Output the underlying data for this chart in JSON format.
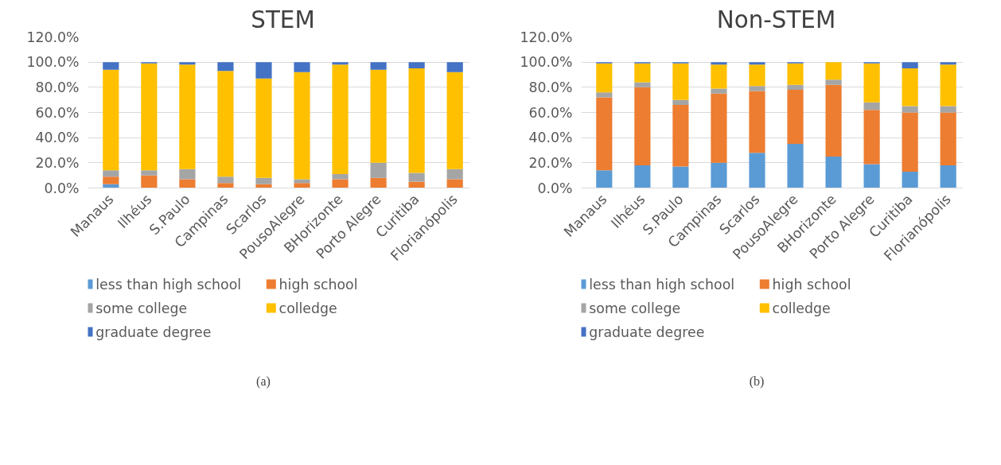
{
  "chart_data": [
    {
      "type": "bar",
      "stacked": true,
      "title": "STEM",
      "categories": [
        "Manaus",
        "Ilhéus",
        "S.Paulo",
        "Campinas",
        "Scarlos",
        "PousoAlegre",
        "BHorizonte",
        "Porto Alegre",
        "Curitiba",
        "Florianópolis"
      ],
      "series": [
        {
          "name": "less than high school",
          "color": "#5b9bd5",
          "values": [
            0.03,
            0,
            0,
            0,
            0,
            0,
            0,
            0,
            0,
            0
          ]
        },
        {
          "name": "high school",
          "color": "#ed7d31",
          "values": [
            0.06,
            0.1,
            0.07,
            0.04,
            0.03,
            0.04,
            0.07,
            0.08,
            0.05,
            0.07
          ]
        },
        {
          "name": "some college",
          "color": "#a5a5a5",
          "values": [
            0.05,
            0.04,
            0.08,
            0.05,
            0.05,
            0.03,
            0.04,
            0.12,
            0.07,
            0.08
          ]
        },
        {
          "name": "colledge",
          "color": "#ffc000",
          "values": [
            0.8,
            0.85,
            0.83,
            0.84,
            0.79,
            0.85,
            0.87,
            0.74,
            0.83,
            0.77
          ]
        },
        {
          "name": "graduate degree",
          "color": "#4472c4",
          "values": [
            0.06,
            0.01,
            0.02,
            0.07,
            0.13,
            0.08,
            0.02,
            0.06,
            0.05,
            0.08
          ]
        }
      ],
      "ylim": [
        0,
        1.2
      ],
      "yticks": [
        {
          "value": 0,
          "label": "0.0%"
        },
        {
          "value": 0.2,
          "label": "20.0%"
        },
        {
          "value": 0.4,
          "label": "40.0%"
        },
        {
          "value": 0.6,
          "label": "60.0%"
        },
        {
          "value": 0.8,
          "label": "80.0%"
        },
        {
          "value": 1,
          "label": "100.0%"
        },
        {
          "value": 1.2,
          "label": "120.0%"
        }
      ],
      "grid": "y",
      "legend": "bottom",
      "annotations": [
        "(a)"
      ]
    },
    {
      "type": "bar",
      "stacked": true,
      "title": "Non-STEM",
      "categories": [
        "Manaus",
        "Ilhéus",
        "S.Paulo",
        "Campinas",
        "Scarlos",
        "PousoAlegre",
        "BHorizonte",
        "Porto Alegre",
        "Curitiba",
        "Florianópolis"
      ],
      "series": [
        {
          "name": "less than high school",
          "color": "#5b9bd5",
          "values": [
            0.14,
            0.18,
            0.17,
            0.2,
            0.28,
            0.35,
            0.25,
            0.19,
            0.13,
            0.18
          ]
        },
        {
          "name": "high school",
          "color": "#ed7d31",
          "values": [
            0.58,
            0.62,
            0.49,
            0.55,
            0.49,
            0.43,
            0.57,
            0.43,
            0.47,
            0.42
          ]
        },
        {
          "name": "some college",
          "color": "#a5a5a5",
          "values": [
            0.04,
            0.04,
            0.04,
            0.04,
            0.04,
            0.04,
            0.04,
            0.06,
            0.05,
            0.05
          ]
        },
        {
          "name": "colledge",
          "color": "#ffc000",
          "values": [
            0.23,
            0.15,
            0.29,
            0.19,
            0.17,
            0.17,
            0.14,
            0.31,
            0.3,
            0.33
          ]
        },
        {
          "name": "graduate degree",
          "color": "#4472c4",
          "values": [
            0.01,
            0.01,
            0.01,
            0.02,
            0.02,
            0.01,
            0,
            0.01,
            0.05,
            0.02
          ]
        }
      ],
      "ylim": [
        0,
        1.2
      ],
      "yticks": [
        {
          "value": 0,
          "label": "0.0%"
        },
        {
          "value": 0.2,
          "label": "20.0%"
        },
        {
          "value": 0.4,
          "label": "40.0%"
        },
        {
          "value": 0.6,
          "label": "60.0%"
        },
        {
          "value": 0.8,
          "label": "80.0%"
        },
        {
          "value": 1,
          "label": "100.0%"
        },
        {
          "value": 1.2,
          "label": "120.0%"
        }
      ],
      "grid": "y",
      "legend": "bottom",
      "annotations": [
        "(b)"
      ]
    }
  ]
}
